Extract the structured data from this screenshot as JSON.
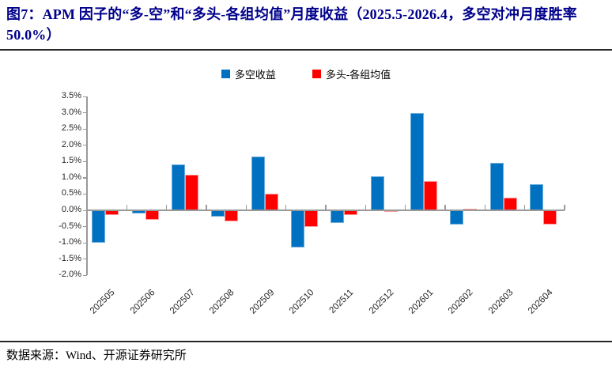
{
  "title": "图7：APM 因子的“多-空”和“多头-各组均值”月度收益（2025.5-2026.4，多空对冲月度胜率 50.0%）",
  "source": "数据来源：Wind、开源证券研究所",
  "colors": {
    "title_text": "#00008B",
    "long_short_blue": "#0070C0",
    "long_avg_red": "#FF0000",
    "axis_gray": "#999999",
    "tick_label": "#262626"
  },
  "legend": [
    {
      "key": "long-short-return",
      "label": "多空收益",
      "color": "#0070C0"
    },
    {
      "key": "long-minus-group-avg",
      "label": "多头-各组均值",
      "color": "#FF0000"
    }
  ],
  "chart_data": {
    "type": "bar",
    "title": "APM 因子的“多-空”和“多头-各组均值”月度收益",
    "categories": [
      "202505",
      "202506",
      "202507",
      "202508",
      "202509",
      "202510",
      "202511",
      "202512",
      "202601",
      "202602",
      "202603",
      "202604"
    ],
    "series": [
      {
        "name": "多空收益",
        "key": "long-short-return",
        "color": "#0070C0",
        "values": [
          -1.0,
          -0.1,
          1.4,
          -0.2,
          1.65,
          -1.15,
          -0.4,
          1.05,
          3.0,
          -0.45,
          1.45,
          0.8
        ]
      },
      {
        "name": "多头-各组均值",
        "key": "long-minus-group-avg",
        "color": "#FF0000",
        "values": [
          -0.15,
          -0.3,
          1.1,
          -0.35,
          0.5,
          -0.5,
          -0.15,
          -0.05,
          0.9,
          0.05,
          0.4,
          -0.45
        ]
      }
    ],
    "ylim": [
      -2.0,
      3.5
    ],
    "ytick_step": 0.5,
    "ytick_format": "0.0%",
    "xtick_rotation": 45,
    "grid": false,
    "legend_position": "top"
  }
}
